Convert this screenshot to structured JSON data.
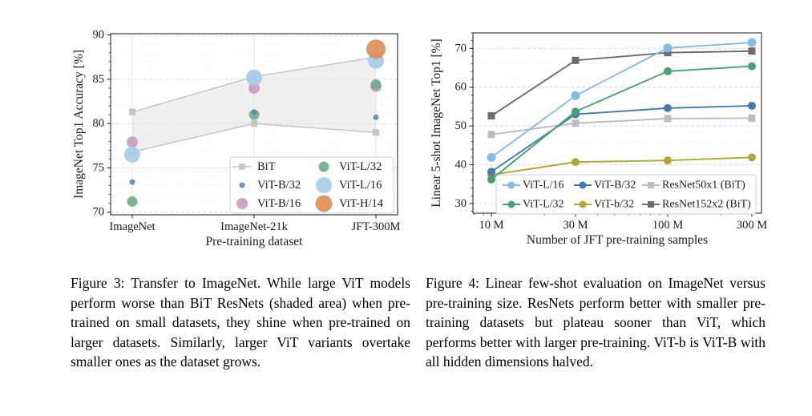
{
  "captions": {
    "fig3": "Figure 3:  Transfer to ImageNet.  While large ViT models perform worse than BiT ResNets (shaded area) when pre-trained on small datasets, they shine when pre-trained on larger datasets. Similarly, larger ViT variants overtake smaller ones as the dataset grows.",
    "fig4": "Figure 4: Linear few-shot evaluation on ImageNet versus pre-training size. ResNets perform better with smaller pre-training datasets but plateau sooner than ViT, which performs better with larger pre-training. ViT-b is ViT-B with all hidden dimensions halved."
  },
  "chart_data": [
    {
      "id": "figure3",
      "type": "scatter",
      "title": "Transfer to ImageNet",
      "xlabel": "Pre-training dataset",
      "ylabel": "ImageNet Top1 Accuracy [%]",
      "categories": [
        "ImageNet",
        "ImageNet-21k",
        "JFT-300M"
      ],
      "ylim": [
        69.7,
        90.15
      ],
      "yticks": [
        70,
        75,
        80,
        85,
        90
      ],
      "grid": {
        "major": true,
        "minor_step": 1,
        "vertical_category_lines": true
      },
      "band": {
        "name": "BiT",
        "line_color": "#c6c6c6",
        "fill_color": "#d9d9d9",
        "upper": [
          81.3,
          85.3,
          87.5
        ],
        "lower": [
          76.8,
          80.0,
          79.0
        ]
      },
      "series": [
        {
          "name": "ViT-B/16",
          "color": "#c99cbb",
          "marker": "circle",
          "radius": 7,
          "values": [
            77.9,
            84.0,
            84.2
          ]
        },
        {
          "name": "ViT-L/32",
          "color": "#6fad88",
          "marker": "circle",
          "radius": 6.5,
          "values": [
            71.2,
            81.0,
            84.4
          ]
        },
        {
          "name": "ViT-B/32",
          "color": "#5a87c0",
          "marker": "circle",
          "radius": 3.5,
          "values": [
            73.4,
            81.3,
            80.7
          ]
        },
        {
          "name": "ViT-L/16",
          "color": "#a5cce9",
          "marker": "circle",
          "radius": 10,
          "values": [
            76.5,
            85.2,
            87.1
          ]
        },
        {
          "name": "ViT-H/14",
          "color": "#dd8b54",
          "marker": "circle",
          "radius": 12,
          "values": [
            null,
            null,
            88.4
          ]
        }
      ],
      "legend": {
        "position": "lower right",
        "columns": [
          [
            "BiT",
            "ViT-B/32",
            "ViT-B/16"
          ],
          [
            "ViT-L/32",
            "ViT-L/16",
            "ViT-H/14"
          ]
        ]
      }
    },
    {
      "id": "figure4",
      "type": "line",
      "title": "Linear few-shot evaluation on ImageNet versus pre-training size",
      "xlabel": "Number of JFT pre-training samples",
      "ylabel": "Linear 5-shot ImageNet Top1 [%]",
      "xscale": "log",
      "x": [
        10,
        30,
        100,
        300
      ],
      "xtick_labels": [
        "10 M",
        "30 M",
        "100 M",
        "300 M"
      ],
      "x_minor_ticks": [
        8,
        9,
        20,
        40,
        50,
        60,
        70,
        80,
        90,
        200
      ],
      "ylim": [
        27.5,
        74
      ],
      "yticks": [
        30,
        40,
        50,
        60,
        70
      ],
      "grid": {
        "major": true,
        "minor_step": 2,
        "vertical_category_lines": false
      },
      "series": [
        {
          "name": "ResNet50x1 (BiT)",
          "color": "#bcbcbc",
          "marker": "square",
          "size": 9,
          "values": [
            47.8,
            50.7,
            51.9,
            52.0
          ]
        },
        {
          "name": "ResNet152x2 (BiT)",
          "color": "#6d6d6d",
          "marker": "square",
          "size": 9,
          "values": [
            52.6,
            66.9,
            68.9,
            69.3
          ]
        },
        {
          "name": "ViT-b/32",
          "color": "#b5a437",
          "marker": "circle",
          "radius": 5,
          "values": [
            37.4,
            40.7,
            41.1,
            41.9
          ]
        },
        {
          "name": "ViT-B/32",
          "color": "#4579b2",
          "marker": "circle",
          "radius": 5,
          "values": [
            38.2,
            53.0,
            54.6,
            55.2
          ]
        },
        {
          "name": "ViT-L/32",
          "color": "#46a173",
          "marker": "circle",
          "radius": 5,
          "values": [
            36.2,
            53.7,
            64.1,
            65.4
          ]
        },
        {
          "name": "ViT-L/16",
          "color": "#85bce6",
          "marker": "circle",
          "radius": 5.5,
          "values": [
            41.9,
            57.8,
            70.1,
            71.5
          ]
        }
      ],
      "legend": {
        "position": "lower right",
        "columns": [
          [
            "ViT-L/16",
            "ViT-L/32"
          ],
          [
            "ViT-B/32",
            "ViT-b/32"
          ],
          [
            "ResNet50x1 (BiT)",
            "ResNet152x2 (BiT)"
          ]
        ]
      }
    }
  ]
}
